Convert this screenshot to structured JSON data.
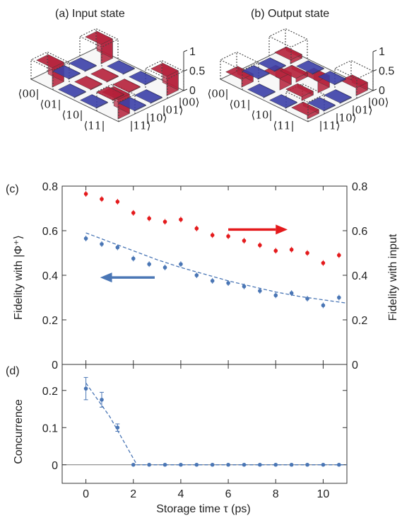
{
  "top_panels": {
    "a_title": "(a) Input state",
    "b_title": "(b) Output state",
    "z_ticks": [
      "1",
      "0.5",
      "0"
    ],
    "row_bras": [
      "⟨00|",
      "⟨01|",
      "⟨10|",
      "⟨11|"
    ],
    "col_kets": [
      "|00⟩",
      "|01⟩",
      "|10⟩",
      "|11⟩"
    ]
  },
  "panel_c_label": "(c)",
  "panel_d_label": "(d)",
  "xlabel": "Storage time τ (ps)",
  "colors": {
    "red": "#e41a1c",
    "blue": "#4a76b5",
    "bar_red": "#b5203a",
    "bar_blue": "#3b3fa7"
  },
  "chart_data": [
    {
      "type": "bar",
      "title": "(a) Input state",
      "matrix": [
        [
          0.5,
          0,
          0,
          0.5
        ],
        [
          0,
          0,
          0,
          0
        ],
        [
          0,
          0,
          0,
          0
        ],
        [
          0.5,
          0,
          0,
          0.5
        ]
      ],
      "zlim": [
        0,
        1
      ]
    },
    {
      "type": "bar",
      "title": "(b) Output state",
      "matrix": [
        [
          0.2,
          0,
          0,
          0.1
        ],
        [
          0,
          0.3,
          0.1,
          0
        ],
        [
          0,
          0.1,
          0.3,
          0
        ],
        [
          0.1,
          0,
          0,
          0.2
        ]
      ],
      "zlim": [
        0,
        1
      ]
    },
    {
      "type": "scatter",
      "ylabel_left": "Fidelity with |Φ⁺⟩",
      "ylabel_right": "Fidelity with input",
      "x_ticks": [
        "0",
        "2",
        "4",
        "6",
        "8",
        "10"
      ],
      "y_ticks": [
        "0",
        "0.2",
        "0.4",
        "0.6",
        "0.8"
      ],
      "xlim": [
        -1.0,
        11.0
      ],
      "ylim": [
        0,
        0.8
      ],
      "series": [
        {
          "x": [
            0,
            0.667,
            1.333,
            2,
            2.667,
            3.333,
            4,
            4.667,
            5.333,
            6,
            6.667,
            7.333,
            8,
            8.667,
            9.333,
            10,
            10.667
          ],
          "y": [
            0.765,
            0.742,
            0.73,
            0.68,
            0.655,
            0.64,
            0.65,
            0.61,
            0.58,
            0.575,
            0.555,
            0.535,
            0.51,
            0.515,
            0.5,
            0.455,
            0.49
          ],
          "color": "#e41a1c"
        },
        {
          "x": [
            0,
            0.667,
            1.333,
            2,
            2.667,
            3.333,
            4,
            4.667,
            5.333,
            6,
            6.667,
            7.333,
            8,
            8.667,
            9.333,
            10,
            10.667
          ],
          "y": [
            0.565,
            0.54,
            0.525,
            0.475,
            0.45,
            0.435,
            0.45,
            0.4,
            0.375,
            0.365,
            0.35,
            0.33,
            0.31,
            0.32,
            0.295,
            0.265,
            0.3
          ],
          "color": "#4a76b5",
          "fit": {
            "x": [
              0,
              1,
              2,
              3,
              4,
              5,
              6,
              7,
              8,
              9,
              10,
              11
            ],
            "y": [
              0.59,
              0.55,
              0.51,
              0.47,
              0.435,
              0.405,
              0.375,
              0.35,
              0.325,
              0.305,
              0.29,
              0.275
            ]
          }
        }
      ]
    },
    {
      "type": "scatter",
      "ylabel": "Concurrence",
      "x_ticks": [
        "0",
        "2",
        "4",
        "6",
        "8",
        "10"
      ],
      "y_ticks": [
        "0",
        "0.1",
        "0.2"
      ],
      "xlim": [
        -1.0,
        11.0
      ],
      "ylim": [
        -0.05,
        0.27
      ],
      "series": [
        {
          "x": [
            0,
            0.667,
            1.333,
            2,
            2.667,
            3.333,
            4,
            4.667,
            5.333,
            6,
            6.667,
            7.333,
            8,
            8.667,
            9.333,
            10,
            10.667
          ],
          "y": [
            0.205,
            0.175,
            0.1,
            0,
            0,
            0,
            0,
            0,
            0,
            0,
            0,
            0,
            0,
            0,
            0,
            0,
            0
          ],
          "err": [
            0.03,
            0.02,
            0.01,
            0,
            0,
            0,
            0,
            0,
            0,
            0,
            0,
            0,
            0,
            0,
            0,
            0,
            0
          ],
          "color": "#4a76b5",
          "fit": {
            "x": [
              0,
              1,
              2.15,
              11
            ],
            "y": [
              0.22,
              0.13,
              0,
              0
            ]
          }
        }
      ]
    }
  ]
}
